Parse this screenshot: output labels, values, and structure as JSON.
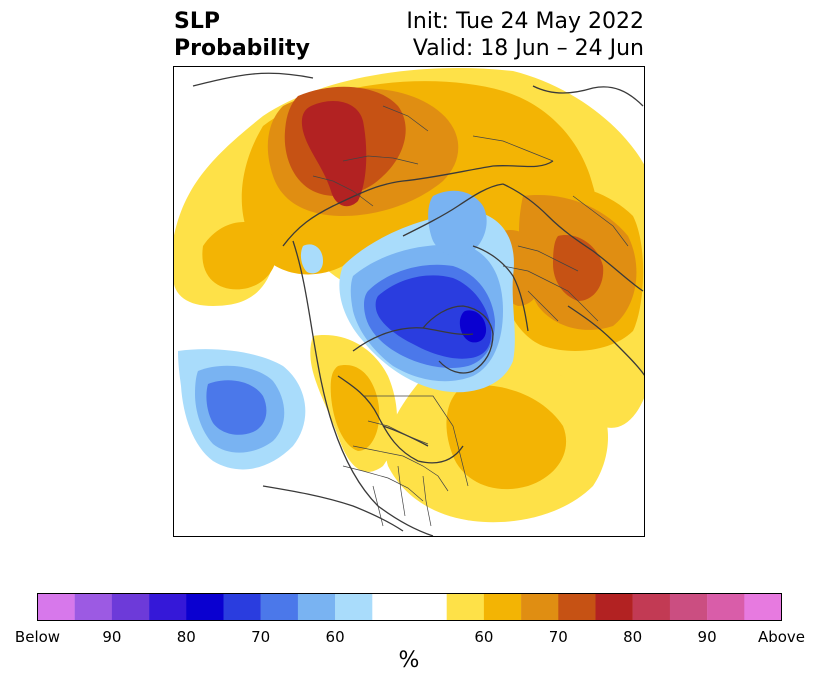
{
  "title": {
    "left_line1": "SLP",
    "left_line2": "Probability",
    "right_line1": "Init: Tue 24 May 2022",
    "right_line2": "Valid: 18 Jun – 24 Jun"
  },
  "colorbar": {
    "unit": "%",
    "tick_labels": [
      "Below",
      "90",
      "80",
      "70",
      "60",
      "60",
      "70",
      "80",
      "90",
      "Above"
    ],
    "colors": [
      "#d778eb",
      "#9c5ae3",
      "#6d3ad9",
      "#3518d8",
      "#0a00d0",
      "#2a3ddf",
      "#4b78ea",
      "#79b3f2",
      "#a9dcfb",
      "#ffffff",
      "#ffffff",
      "#fee148",
      "#f3b404",
      "#e08e12",
      "#c65214",
      "#b22222",
      "#c23a54",
      "#cb4e81",
      "#d95da9",
      "#e77ae0"
    ]
  },
  "map": {
    "projection": "north-polar-stereographic",
    "features": [
      "sea-level-pressure-probability",
      "coastlines",
      "country-borders",
      "us-state-borders"
    ]
  }
}
